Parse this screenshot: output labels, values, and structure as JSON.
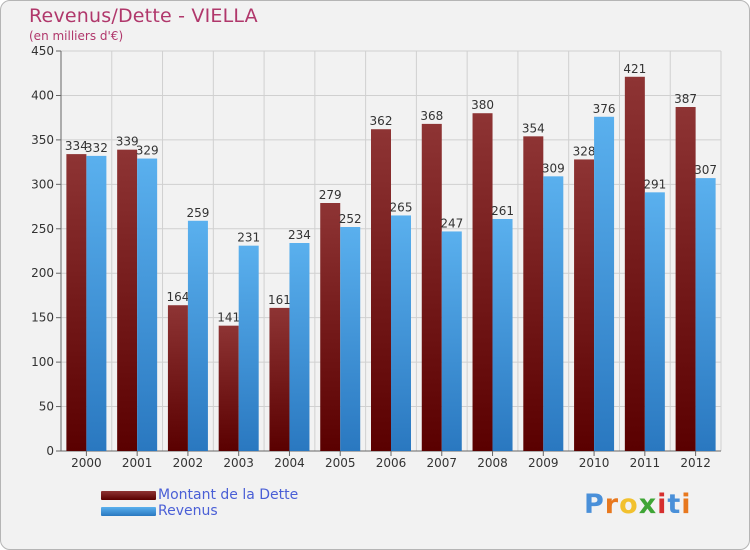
{
  "header": {
    "title": "Revenus/Dette - VIELLA",
    "subtitle": "(en milliers d'€)"
  },
  "chart_data": {
    "type": "bar",
    "categories": [
      "2000",
      "2001",
      "2002",
      "2003",
      "2004",
      "2005",
      "2006",
      "2007",
      "2008",
      "2009",
      "2010",
      "2011",
      "2012"
    ],
    "series": [
      {
        "name": "Montant de la Dette",
        "values": [
          334,
          339,
          164,
          141,
          161,
          279,
          362,
          368,
          380,
          354,
          328,
          421,
          387
        ],
        "color": "#8b1a1a"
      },
      {
        "name": "Revenus",
        "values": [
          332,
          329,
          259,
          231,
          234,
          252,
          265,
          247,
          261,
          309,
          376,
          291,
          307
        ],
        "color": "#3a9be0"
      }
    ],
    "ylim": [
      0,
      450
    ],
    "yticks": [
      0,
      50,
      100,
      150,
      200,
      250,
      300,
      350,
      400,
      450
    ],
    "grid": true,
    "legend_position": "bottom-left"
  },
  "logo": {
    "text": "Proxiti",
    "letters": [
      {
        "ch": "P",
        "color": "#4a90d9"
      },
      {
        "ch": "r",
        "color": "#e8781e"
      },
      {
        "ch": "o",
        "color": "#f2c12e"
      },
      {
        "ch": "x",
        "color": "#3fa535"
      },
      {
        "ch": "i",
        "color": "#d62f2f"
      },
      {
        "ch": "t",
        "color": "#4a90d9"
      },
      {
        "ch": "i",
        "color": "#e8781e"
      }
    ]
  }
}
